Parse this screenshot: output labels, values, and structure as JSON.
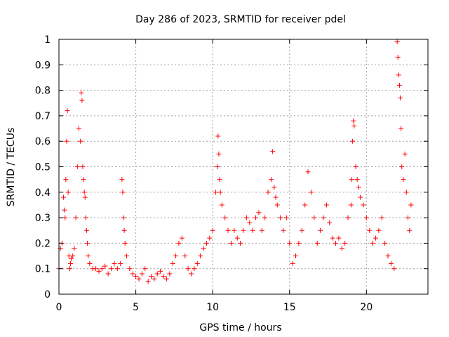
{
  "chart_data": {
    "type": "scatter",
    "title": "Day 286 of 2023, SRMTID for receiver pdel",
    "xlabel": "GPS time / hours",
    "ylabel": "SRMTID / TECUs",
    "xlim": [
      0,
      24
    ],
    "ylim": [
      0,
      1
    ],
    "x_ticks": [
      0,
      5,
      10,
      15,
      20
    ],
    "x_tick_labels": [
      "0",
      "5",
      "10",
      "15",
      "20"
    ],
    "y_ticks": [
      0,
      0.1,
      0.2,
      0.3,
      0.4,
      0.5,
      0.6,
      0.7,
      0.8,
      0.9,
      1
    ],
    "y_tick_labels": [
      "0",
      "0.1",
      "0.2",
      "0.3",
      "0.4",
      "0.5",
      "0.6",
      "0.7",
      "0.8",
      "0.9",
      "1"
    ],
    "grid": true,
    "marker": "+",
    "marker_color": "#ff0000",
    "series": [
      {
        "name": "SRMTID",
        "x": [
          0.0,
          0.1,
          0.2,
          0.3,
          0.35,
          0.4,
          0.45,
          0.5,
          0.55,
          0.6,
          0.65,
          0.7,
          0.75,
          0.8,
          0.9,
          1.0,
          1.1,
          1.2,
          1.3,
          1.4,
          1.45,
          1.5,
          1.55,
          1.6,
          1.65,
          1.7,
          1.75,
          1.8,
          1.85,
          1.9,
          2.0,
          2.2,
          2.4,
          2.6,
          2.8,
          3.0,
          3.2,
          3.4,
          3.6,
          3.8,
          4.0,
          4.1,
          4.15,
          4.2,
          4.25,
          4.3,
          4.4,
          4.6,
          4.8,
          5.0,
          5.2,
          5.4,
          5.6,
          5.8,
          6.0,
          6.2,
          6.4,
          6.6,
          6.8,
          7.0,
          7.2,
          7.4,
          7.6,
          7.8,
          8.0,
          8.2,
          8.4,
          8.6,
          8.8,
          9.0,
          9.2,
          9.4,
          9.6,
          9.8,
          10.0,
          10.2,
          10.3,
          10.35,
          10.4,
          10.45,
          10.5,
          10.6,
          10.8,
          11.0,
          11.2,
          11.4,
          11.6,
          11.8,
          12.0,
          12.2,
          12.4,
          12.6,
          12.8,
          13.0,
          13.2,
          13.4,
          13.6,
          13.8,
          13.9,
          14.0,
          14.1,
          14.2,
          14.4,
          14.6,
          14.8,
          15.0,
          15.2,
          15.4,
          15.6,
          15.8,
          16.0,
          16.2,
          16.4,
          16.6,
          16.8,
          17.0,
          17.2,
          17.4,
          17.6,
          17.8,
          18.0,
          18.2,
          18.4,
          18.6,
          18.8,
          19.0,
          19.05,
          19.1,
          19.15,
          19.2,
          19.3,
          19.4,
          19.5,
          19.6,
          19.8,
          20.0,
          20.2,
          20.4,
          20.6,
          20.8,
          21.0,
          21.2,
          21.4,
          21.6,
          21.8,
          22.0,
          22.05,
          22.1,
          22.15,
          22.2,
          22.25,
          22.3,
          22.4,
          22.5,
          22.6,
          22.7,
          22.8,
          22.9
        ],
        "y": [
          0.1,
          0.18,
          0.2,
          0.38,
          0.33,
          0.3,
          0.45,
          0.6,
          0.72,
          0.4,
          0.15,
          0.1,
          0.12,
          0.14,
          0.15,
          0.18,
          0.3,
          0.5,
          0.65,
          0.6,
          0.79,
          0.76,
          0.5,
          0.45,
          0.4,
          0.38,
          0.3,
          0.25,
          0.2,
          0.15,
          0.12,
          0.1,
          0.1,
          0.09,
          0.1,
          0.11,
          0.08,
          0.1,
          0.12,
          0.1,
          0.12,
          0.45,
          0.4,
          0.3,
          0.25,
          0.2,
          0.15,
          0.1,
          0.08,
          0.07,
          0.06,
          0.08,
          0.1,
          0.05,
          0.07,
          0.06,
          0.08,
          0.09,
          0.07,
          0.06,
          0.08,
          0.12,
          0.15,
          0.2,
          0.22,
          0.15,
          0.1,
          0.08,
          0.1,
          0.12,
          0.15,
          0.18,
          0.2,
          0.22,
          0.25,
          0.4,
          0.5,
          0.62,
          0.55,
          0.45,
          0.4,
          0.35,
          0.3,
          0.25,
          0.2,
          0.25,
          0.22,
          0.2,
          0.25,
          0.3,
          0.28,
          0.25,
          0.3,
          0.32,
          0.25,
          0.3,
          0.4,
          0.45,
          0.56,
          0.42,
          0.38,
          0.35,
          0.3,
          0.25,
          0.3,
          0.2,
          0.12,
          0.15,
          0.2,
          0.25,
          0.35,
          0.48,
          0.4,
          0.3,
          0.2,
          0.25,
          0.3,
          0.35,
          0.28,
          0.22,
          0.2,
          0.22,
          0.18,
          0.2,
          0.3,
          0.35,
          0.45,
          0.6,
          0.68,
          0.66,
          0.5,
          0.45,
          0.42,
          0.38,
          0.35,
          0.3,
          0.25,
          0.2,
          0.22,
          0.25,
          0.3,
          0.2,
          0.15,
          0.12,
          0.1,
          0.99,
          0.93,
          0.86,
          0.82,
          0.77,
          0.65,
          0.5,
          0.45,
          0.55,
          0.4,
          0.3,
          0.25,
          0.35
        ]
      }
    ]
  }
}
